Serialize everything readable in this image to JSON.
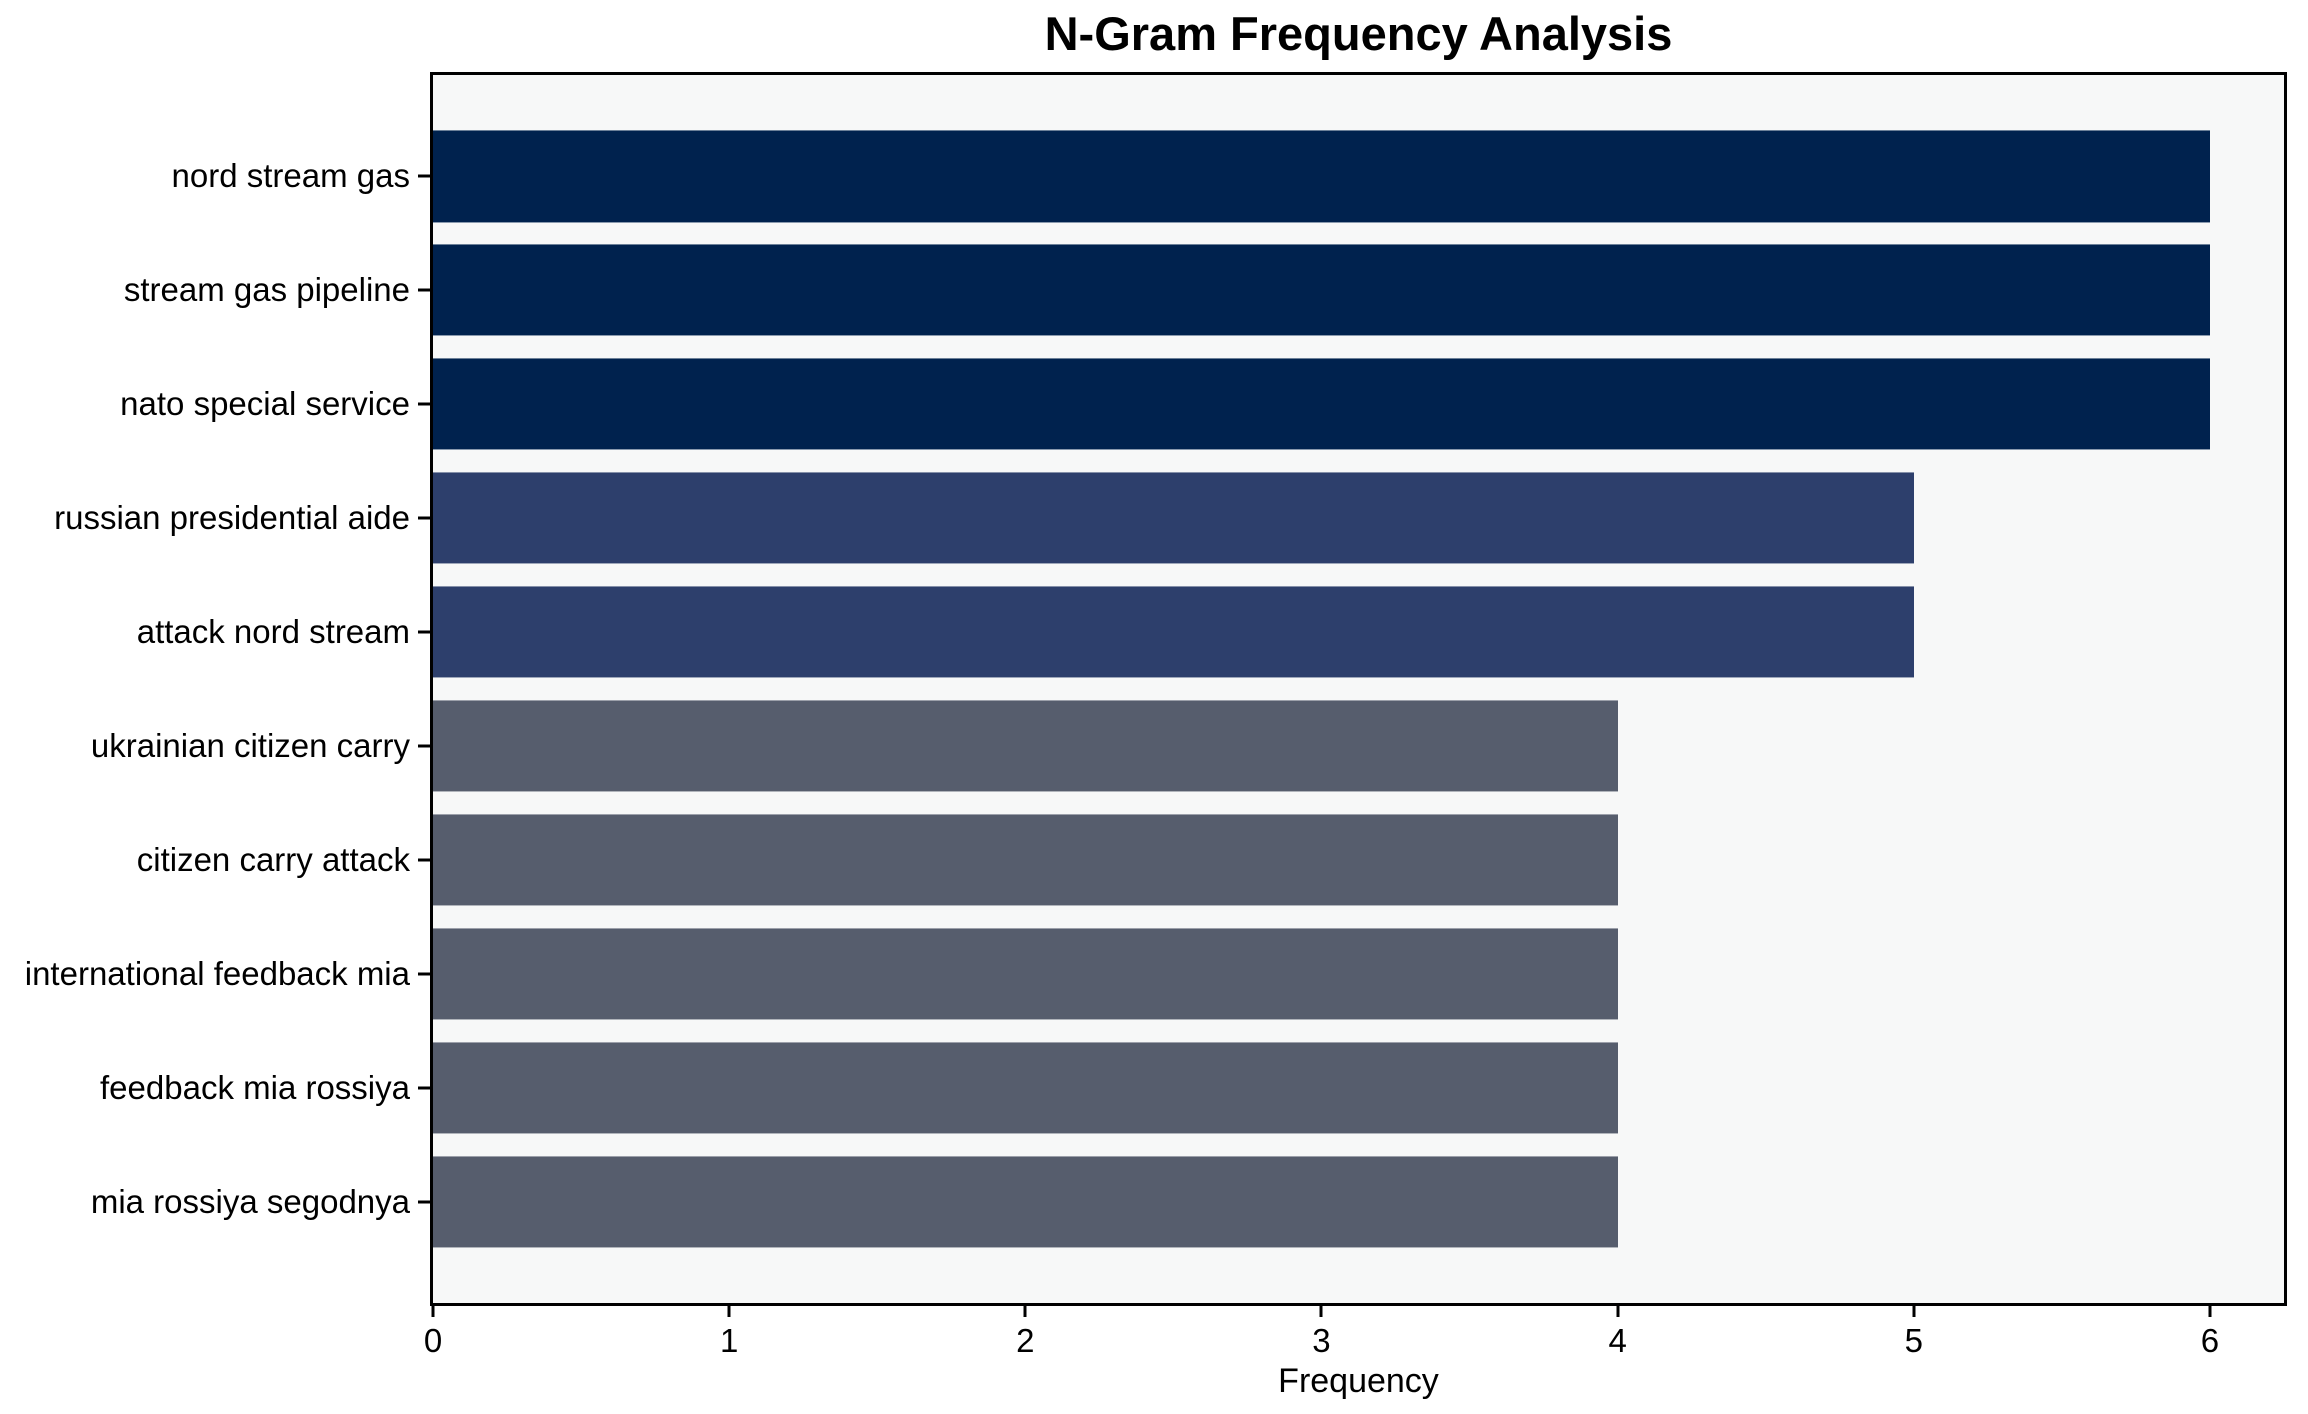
{
  "title": "N-Gram Frequency Analysis",
  "chart_data": {
    "type": "bar",
    "orientation": "horizontal",
    "title": "N-Gram Frequency Analysis",
    "xlabel": "Frequency",
    "ylabel": "",
    "categories": [
      "nord stream gas",
      "stream gas pipeline",
      "nato special service",
      "russian presidential aide",
      "attack nord stream",
      "ukrainian citizen carry",
      "citizen carry attack",
      "international feedback mia",
      "feedback mia rossiya",
      "mia rossiya segodnya"
    ],
    "values": [
      6,
      6,
      6,
      5,
      5,
      4,
      4,
      4,
      4,
      4
    ],
    "bar_colors": [
      "#00224e",
      "#00224e",
      "#00224e",
      "#2d3f6c",
      "#2d3f6c",
      "#565d6d",
      "#565d6d",
      "#565d6d",
      "#565d6d",
      "#565d6d"
    ],
    "xlim": [
      0,
      6.25
    ],
    "x_ticks": [
      0,
      1,
      2,
      3,
      4,
      5,
      6
    ],
    "grid": false,
    "legend": null,
    "plot_background": "#f7f8f8",
    "figure_background": "#ffffff",
    "spine_color": "#000000"
  }
}
